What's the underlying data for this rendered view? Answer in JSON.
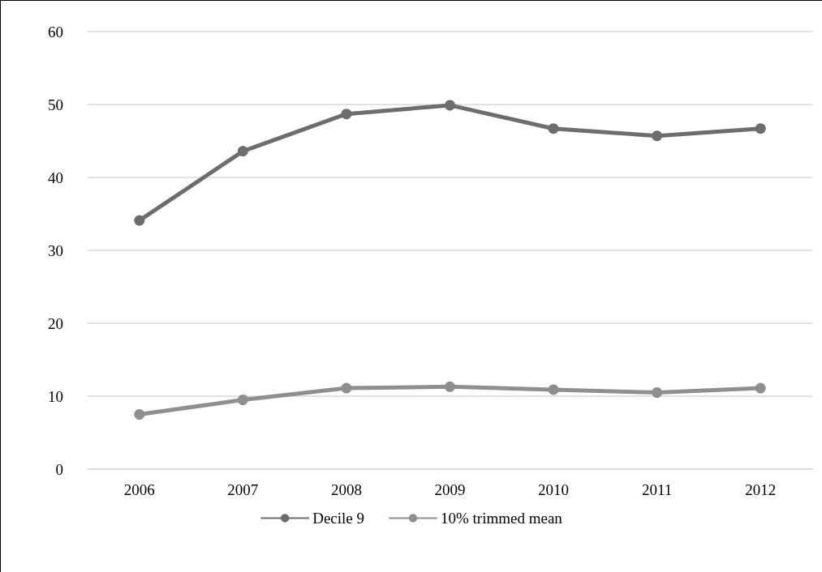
{
  "chart_data": {
    "type": "line",
    "categories": [
      "2006",
      "2007",
      "2008",
      "2009",
      "2010",
      "2011",
      "2012"
    ],
    "series": [
      {
        "name": "Decile 9",
        "color": "#6d6d6d",
        "values": [
          34.1,
          43.6,
          48.7,
          49.9,
          46.7,
          45.7,
          46.7
        ]
      },
      {
        "name": "10% trimmed mean",
        "color": "#8f8f8f",
        "values": [
          7.5,
          9.5,
          11.1,
          11.3,
          10.9,
          10.5,
          11.1
        ]
      }
    ],
    "ylim": [
      0,
      60
    ],
    "yticks": [
      0,
      10,
      20,
      30,
      40,
      50,
      60
    ],
    "grid": "y",
    "legend": "bottom",
    "marker": "circle",
    "line_style": "solid"
  }
}
